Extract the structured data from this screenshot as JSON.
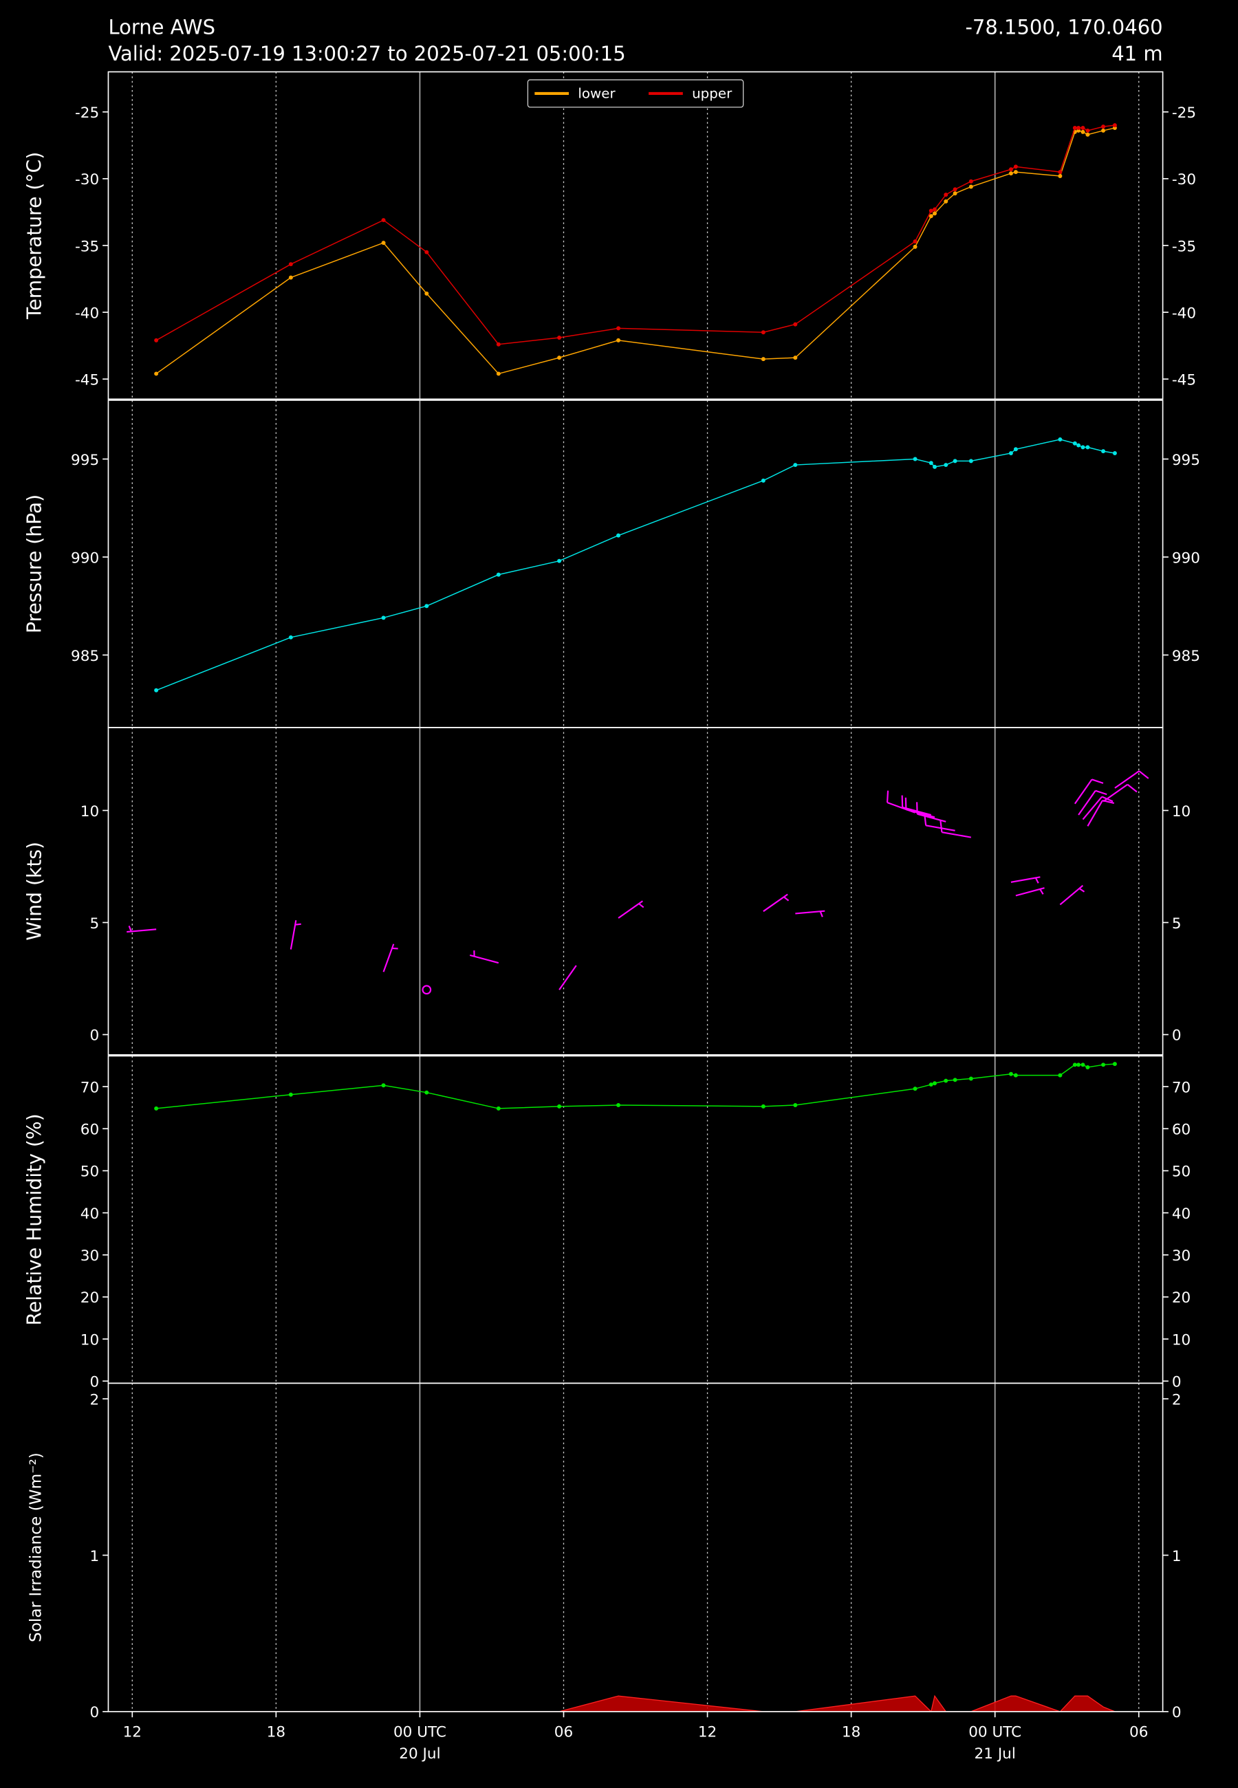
{
  "header": {
    "title": "Lorne AWS",
    "subtitle": "Valid: 2025-07-19 13:00:27 to 2025-07-21 05:00:15",
    "location": "-78.1500, 170.0460",
    "elevation": "41 m"
  },
  "chart_data": [
    {
      "type": "line",
      "ylabel": "Temperature (°C)",
      "ylim": [
        -46.5,
        -22
      ],
      "yticks": [
        -45,
        -40,
        -35,
        -30,
        -25
      ],
      "legend": "upper center",
      "x": [
        "2025-07-19T13:00",
        "2025-07-19T18:37",
        "2025-07-19T22:29",
        "2025-07-20T00:17",
        "2025-07-20T03:17",
        "2025-07-20T05:49",
        "2025-07-20T08:17",
        "2025-07-20T14:20",
        "2025-07-20T15:40",
        "2025-07-20T20:40",
        "2025-07-20T21:20",
        "2025-07-20T21:29",
        "2025-07-20T21:57",
        "2025-07-20T22:20",
        "2025-07-20T23:00",
        "2025-07-21T00:40",
        "2025-07-21T00:52",
        "2025-07-21T02:43",
        "2025-07-21T03:20",
        "2025-07-21T03:29",
        "2025-07-21T03:40",
        "2025-07-21T03:52",
        "2025-07-21T04:31",
        "2025-07-21T05:00"
      ],
      "series": [
        {
          "name": "lower",
          "color": "#ffa500",
          "values": [
            -44.6,
            -37.4,
            -34.8,
            -38.6,
            -44.6,
            -43.4,
            -42.1,
            -43.5,
            -43.4,
            -35.1,
            -32.8,
            -32.6,
            -31.7,
            -31.1,
            -30.6,
            -29.6,
            -29.5,
            -29.8,
            -26.5,
            -26.4,
            -26.5,
            -26.7,
            -26.4,
            -26.2
          ]
        },
        {
          "name": "upper",
          "color": "#e00000",
          "values": [
            -42.1,
            -36.4,
            -33.1,
            -35.5,
            -42.4,
            -41.9,
            -41.2,
            -41.5,
            -40.9,
            -34.7,
            -32.4,
            -32.3,
            -31.2,
            -30.8,
            -30.2,
            -29.3,
            -29.1,
            -29.5,
            -26.2,
            -26.2,
            -26.2,
            -26.4,
            -26.1,
            -26.0
          ]
        }
      ]
    },
    {
      "type": "line",
      "ylabel": "Pressure (hPa)",
      "ylim": [
        981.3,
        998
      ],
      "yticks": [
        985,
        990,
        995
      ],
      "color": "#00e5e5",
      "x": [
        "2025-07-19T13:00",
        "2025-07-19T18:37",
        "2025-07-19T22:29",
        "2025-07-20T00:17",
        "2025-07-20T03:17",
        "2025-07-20T05:49",
        "2025-07-20T08:17",
        "2025-07-20T14:20",
        "2025-07-20T15:40",
        "2025-07-20T20:40",
        "2025-07-20T21:20",
        "2025-07-20T21:29",
        "2025-07-20T21:57",
        "2025-07-20T22:20",
        "2025-07-20T23:00",
        "2025-07-21T00:40",
        "2025-07-21T00:52",
        "2025-07-21T02:43",
        "2025-07-21T03:20",
        "2025-07-21T03:29",
        "2025-07-21T03:40",
        "2025-07-21T03:52",
        "2025-07-21T04:31",
        "2025-07-21T05:00"
      ],
      "values": [
        983.2,
        985.9,
        986.9,
        987.5,
        989.1,
        989.8,
        991.1,
        993.9,
        994.7,
        995.0,
        994.8,
        994.6,
        994.7,
        994.9,
        994.9,
        995.3,
        995.5,
        996.0,
        995.8,
        995.7,
        995.6,
        995.6,
        995.4,
        995.3
      ]
    },
    {
      "type": "barbs",
      "ylabel": "Wind (kts)",
      "ylim": [
        -0.9,
        13.7
      ],
      "yticks": [
        0,
        5,
        10
      ],
      "color": "#ff00ff",
      "x": [
        "2025-07-19T13:00",
        "2025-07-19T18:37",
        "2025-07-19T22:29",
        "2025-07-20T00:17",
        "2025-07-20T03:17",
        "2025-07-20T05:49",
        "2025-07-20T08:17",
        "2025-07-20T14:20",
        "2025-07-20T15:40",
        "2025-07-20T20:40",
        "2025-07-20T21:20",
        "2025-07-20T21:29",
        "2025-07-20T21:57",
        "2025-07-20T22:20",
        "2025-07-20T23:00",
        "2025-07-21T00:40",
        "2025-07-21T00:52",
        "2025-07-21T02:43",
        "2025-07-21T03:20",
        "2025-07-21T03:29",
        "2025-07-21T03:40",
        "2025-07-21T03:52",
        "2025-07-21T04:31",
        "2025-07-21T05:00"
      ],
      "values": [
        4.7,
        3.8,
        2.8,
        2.0,
        3.2,
        2.0,
        5.2,
        5.5,
        5.4,
        9.9,
        9.8,
        9.7,
        9.5,
        9.1,
        8.8,
        6.8,
        6.2,
        5.8,
        10.3,
        9.8,
        9.6,
        9.3,
        10.4,
        11.0
      ],
      "directions": [
        265,
        10,
        20,
        null,
        285,
        35,
        55,
        55,
        85,
        290,
        285,
        285,
        285,
        280,
        280,
        80,
        75,
        50,
        35,
        35,
        40,
        30,
        55,
        55
      ]
    },
    {
      "type": "line",
      "ylabel": "Relative Humidity (%)",
      "ylim": [
        -0.5,
        77.3
      ],
      "yticks": [
        0,
        10,
        20,
        30,
        40,
        50,
        60,
        70
      ],
      "color": "#00e600",
      "x": [
        "2025-07-19T13:00",
        "2025-07-19T18:37",
        "2025-07-19T22:29",
        "2025-07-20T00:17",
        "2025-07-20T03:17",
        "2025-07-20T05:49",
        "2025-07-20T08:17",
        "2025-07-20T14:20",
        "2025-07-20T15:40",
        "2025-07-20T20:40",
        "2025-07-20T21:20",
        "2025-07-20T21:29",
        "2025-07-20T21:57",
        "2025-07-20T22:20",
        "2025-07-20T23:00",
        "2025-07-21T00:40",
        "2025-07-21T00:52",
        "2025-07-21T02:43",
        "2025-07-21T03:20",
        "2025-07-21T03:29",
        "2025-07-21T03:40",
        "2025-07-21T03:52",
        "2025-07-21T04:31",
        "2025-07-21T05:00"
      ],
      "values": [
        64.8,
        68.1,
        70.3,
        68.6,
        64.8,
        65.3,
        65.6,
        65.3,
        65.6,
        69.5,
        70.5,
        70.8,
        71.4,
        71.6,
        71.9,
        73.0,
        72.7,
        72.7,
        75.2,
        75.2,
        75.2,
        74.6,
        75.2,
        75.4
      ]
    },
    {
      "type": "area",
      "ylabel": "Solar Irradiance (Wm⁻²)",
      "ylim": [
        0,
        2.1
      ],
      "yticks": [
        0,
        1,
        2
      ],
      "color": "#cc0000",
      "xlim": [
        "2025-07-19T11:00",
        "2025-07-21T07:00"
      ],
      "xticks": [
        {
          "value": "2025-07-19T12:00",
          "label": "12"
        },
        {
          "value": "2025-07-19T18:00",
          "label": "18"
        },
        {
          "value": "2025-07-20T00:00",
          "label": "00 UTC",
          "date": "20 Jul"
        },
        {
          "value": "2025-07-20T06:00",
          "label": "06"
        },
        {
          "value": "2025-07-20T12:00",
          "label": "12"
        },
        {
          "value": "2025-07-20T18:00",
          "label": "18"
        },
        {
          "value": "2025-07-21T00:00",
          "label": "00 UTC",
          "date": "21 Jul"
        },
        {
          "value": "2025-07-21T06:00",
          "label": "06"
        }
      ],
      "x": [
        "2025-07-19T13:00",
        "2025-07-19T18:37",
        "2025-07-19T22:29",
        "2025-07-20T00:17",
        "2025-07-20T03:17",
        "2025-07-20T05:49",
        "2025-07-20T08:17",
        "2025-07-20T14:20",
        "2025-07-20T15:40",
        "2025-07-20T20:40",
        "2025-07-20T21:20",
        "2025-07-20T21:29",
        "2025-07-20T21:57",
        "2025-07-20T22:20",
        "2025-07-20T23:00",
        "2025-07-21T00:40",
        "2025-07-21T00:52",
        "2025-07-21T02:43",
        "2025-07-21T03:20",
        "2025-07-21T03:29",
        "2025-07-21T03:40",
        "2025-07-21T03:52",
        "2025-07-21T04:31",
        "2025-07-21T05:00"
      ],
      "values": [
        0,
        0,
        0,
        0,
        0,
        0,
        0.1,
        0,
        0,
        0.1,
        0,
        0.1,
        0,
        0,
        0,
        0.1,
        0.1,
        0,
        0.1,
        0.1,
        0.1,
        0.1,
        0.03,
        0
      ]
    }
  ]
}
